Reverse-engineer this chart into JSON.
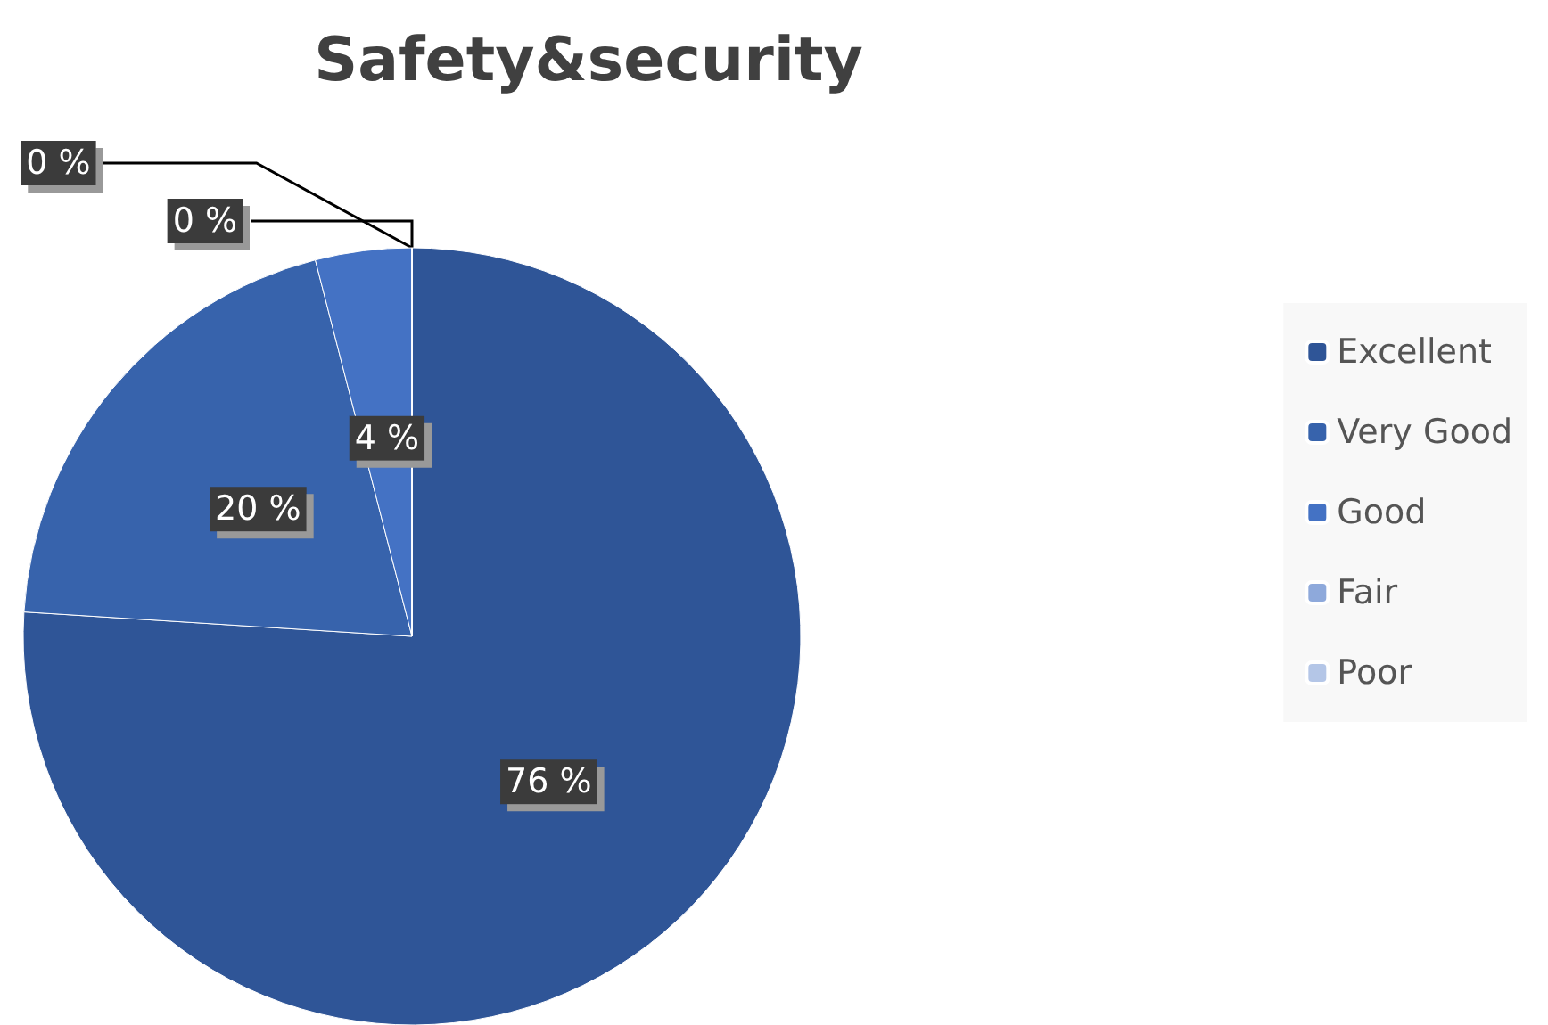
{
  "chart_data": {
    "type": "pie",
    "title": "Safety&security",
    "categories": [
      "Excellent",
      "Very Good",
      "Good",
      "Fair",
      "Poor"
    ],
    "values": [
      76,
      20,
      4,
      0,
      0
    ],
    "value_labels": [
      "76 %",
      "20 %",
      "4 %",
      "0 %",
      "0 %"
    ],
    "colors": [
      "#2f5597",
      "#3763ac",
      "#4472c4",
      "#8ea9db",
      "#b4c6e7"
    ],
    "legend": "right"
  }
}
